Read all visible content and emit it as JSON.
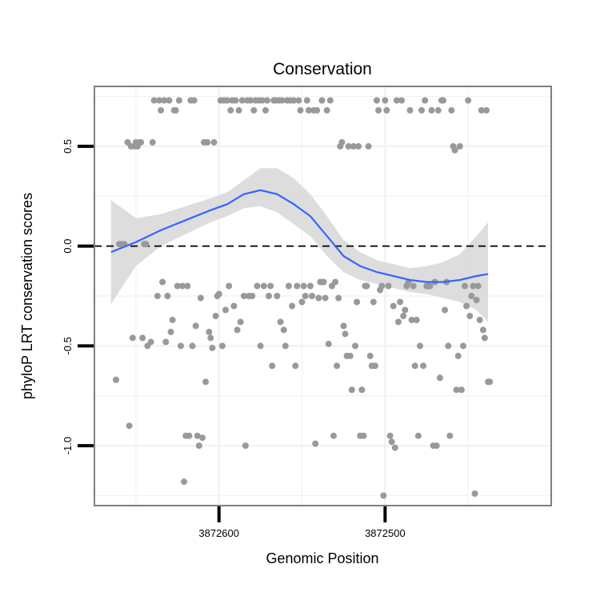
{
  "chart_data": {
    "type": "scatter",
    "title": "Conservation",
    "xlabel": "Genomic Position",
    "ylabel": "phyloP LRT conservation scores",
    "x_ticks": [
      3872600,
      3872500
    ],
    "x_tick_labels": [
      "3872600",
      "3872500"
    ],
    "y_ticks": [
      0.5,
      0.0,
      -0.5,
      -1.0
    ],
    "y_tick_labels": [
      "0.5",
      "0.0",
      "-0.5",
      "-1.0"
    ],
    "xlim": [
      3872675,
      3872400
    ],
    "x_reversed": true,
    "ylim": [
      -1.3,
      0.8
    ],
    "grid": true,
    "reference_line": {
      "y": 0.0,
      "style": "dashed"
    },
    "colors": {
      "points": "#999999",
      "smooth": "#3366ff",
      "ribbon": "#d9d9d9",
      "panel_border": "#7f7f7f",
      "grid": "#f2f2f2"
    },
    "points": [
      [
        3872662,
        -0.67
      ],
      [
        3872660,
        0.01
      ],
      [
        3872659,
        0.01
      ],
      [
        3872657,
        0.01
      ],
      [
        3872655,
        0.52
      ],
      [
        3872654,
        -0.9
      ],
      [
        3872653,
        0.5
      ],
      [
        3872652,
        -0.46
      ],
      [
        3872651,
        0.5
      ],
      [
        3872650,
        0.52
      ],
      [
        3872649,
        0.5
      ],
      [
        3872648,
        0.52
      ],
      [
        3872647,
        0.52
      ],
      [
        3872646,
        -0.46
      ],
      [
        3872645,
        0.01
      ],
      [
        3872644,
        0.01
      ],
      [
        3872643,
        -0.5
      ],
      [
        3872641,
        -0.48
      ],
      [
        3872640,
        0.52
      ],
      [
        3872639,
        0.73
      ],
      [
        3872637,
        -0.25
      ],
      [
        3872636,
        0.73
      ],
      [
        3872635,
        0.68
      ],
      [
        3872634,
        -0.18
      ],
      [
        3872633,
        0.73
      ],
      [
        3872632,
        -0.48
      ],
      [
        3872631,
        -0.25
      ],
      [
        3872630,
        0.73
      ],
      [
        3872629,
        -0.43
      ],
      [
        3872628,
        -0.37
      ],
      [
        3872627,
        0.68
      ],
      [
        3872626,
        0.68
      ],
      [
        3872625,
        -0.2
      ],
      [
        3872624,
        0.73
      ],
      [
        3872623,
        -0.5
      ],
      [
        3872622,
        -0.2
      ],
      [
        3872621,
        -1.18
      ],
      [
        3872620,
        -0.95
      ],
      [
        3872619,
        -0.2
      ],
      [
        3872618,
        -0.95
      ],
      [
        3872617,
        0.73
      ],
      [
        3872616,
        -0.5
      ],
      [
        3872615,
        0.73
      ],
      [
        3872614,
        -0.4
      ],
      [
        3872613,
        -0.95
      ],
      [
        3872612,
        -1.0
      ],
      [
        3872611,
        -0.26
      ],
      [
        3872610,
        -0.96
      ],
      [
        3872609,
        0.52
      ],
      [
        3872608,
        -0.68
      ],
      [
        3872607,
        0.52
      ],
      [
        3872606,
        -0.43
      ],
      [
        3872605,
        -0.46
      ],
      [
        3872604,
        -0.51
      ],
      [
        3872603,
        0.52
      ],
      [
        3872602,
        -0.35
      ],
      [
        3872601,
        -0.25
      ],
      [
        3872600,
        -0.24
      ],
      [
        3872599,
        0.73
      ],
      [
        3872598,
        -0.5
      ],
      [
        3872597,
        0.73
      ],
      [
        3872596,
        -0.32
      ],
      [
        3872595,
        0.73
      ],
      [
        3872594,
        -0.2
      ],
      [
        3872593,
        0.68
      ],
      [
        3872592,
        0.73
      ],
      [
        3872591,
        -0.3
      ],
      [
        3872590,
        0.73
      ],
      [
        3872589,
        -0.42
      ],
      [
        3872588,
        0.68
      ],
      [
        3872587,
        -0.38
      ],
      [
        3872586,
        0.73
      ],
      [
        3872585,
        -0.25
      ],
      [
        3872584,
        -1.0
      ],
      [
        3872583,
        0.73
      ],
      [
        3872582,
        -0.25
      ],
      [
        3872581,
        0.73
      ],
      [
        3872580,
        -0.25
      ],
      [
        3872579,
        0.68
      ],
      [
        3872578,
        0.73
      ],
      [
        3872577,
        -0.2
      ],
      [
        3872576,
        0.73
      ],
      [
        3872575,
        -0.5
      ],
      [
        3872574,
        0.73
      ],
      [
        3872573,
        -0.2
      ],
      [
        3872572,
        0.68
      ],
      [
        3872571,
        0.73
      ],
      [
        3872570,
        -0.25
      ],
      [
        3872569,
        -0.2
      ],
      [
        3872568,
        -0.6
      ],
      [
        3872567,
        0.73
      ],
      [
        3872566,
        0.73
      ],
      [
        3872565,
        -0.25
      ],
      [
        3872564,
        0.73
      ],
      [
        3872563,
        -0.38
      ],
      [
        3872562,
        0.73
      ],
      [
        3872561,
        -0.42
      ],
      [
        3872560,
        -0.5
      ],
      [
        3872559,
        0.73
      ],
      [
        3872558,
        -0.2
      ],
      [
        3872557,
        0.73
      ],
      [
        3872556,
        -0.3
      ],
      [
        3872555,
        0.73
      ],
      [
        3872554,
        -0.6
      ],
      [
        3872553,
        -0.2
      ],
      [
        3872552,
        0.73
      ],
      [
        3872551,
        0.68
      ],
      [
        3872550,
        -0.28
      ],
      [
        3872549,
        -0.2
      ],
      [
        3872548,
        -0.25
      ],
      [
        3872547,
        0.73
      ],
      [
        3872546,
        0.68
      ],
      [
        3872545,
        -0.2
      ],
      [
        3872544,
        -0.25
      ],
      [
        3872543,
        0.68
      ],
      [
        3872542,
        -0.99
      ],
      [
        3872541,
        0.68
      ],
      [
        3872540,
        -0.26
      ],
      [
        3872539,
        -0.18
      ],
      [
        3872538,
        0.73
      ],
      [
        3872537,
        -0.18
      ],
      [
        3872536,
        -0.26
      ],
      [
        3872535,
        0.68
      ],
      [
        3872534,
        -0.49
      ],
      [
        3872533,
        0.73
      ],
      [
        3872532,
        -0.2
      ],
      [
        3872531,
        -0.95
      ],
      [
        3872530,
        -0.18
      ],
      [
        3872529,
        -0.6
      ],
      [
        3872528,
        -0.26
      ],
      [
        3872527,
        0.5
      ],
      [
        3872526,
        0.52
      ],
      [
        3872525,
        -0.4
      ],
      [
        3872524,
        -0.44
      ],
      [
        3872523,
        -0.55
      ],
      [
        3872522,
        0.5
      ],
      [
        3872521,
        -0.55
      ],
      [
        3872520,
        -0.72
      ],
      [
        3872519,
        0.5
      ],
      [
        3872518,
        -0.5
      ],
      [
        3872517,
        -0.28
      ],
      [
        3872516,
        0.5
      ],
      [
        3872515,
        -0.95
      ],
      [
        3872514,
        -0.72
      ],
      [
        3872513,
        -0.95
      ],
      [
        3872512,
        -0.2
      ],
      [
        3872511,
        -0.2
      ],
      [
        3872510,
        0.5
      ],
      [
        3872509,
        -0.55
      ],
      [
        3872508,
        -0.6
      ],
      [
        3872507,
        -0.28
      ],
      [
        3872506,
        -0.6
      ],
      [
        3872505,
        0.73
      ],
      [
        3872504,
        0.68
      ],
      [
        3872503,
        -0.22
      ],
      [
        3872502,
        -0.2
      ],
      [
        3872501,
        -1.25
      ],
      [
        3872500,
        0.73
      ],
      [
        3872499,
        0.68
      ],
      [
        3872498,
        -0.2
      ],
      [
        3872497,
        -0.95
      ],
      [
        3872496,
        -0.98
      ],
      [
        3872495,
        -0.3
      ],
      [
        3872494,
        -1.01
      ],
      [
        3872493,
        0.73
      ],
      [
        3872492,
        -0.38
      ],
      [
        3872491,
        -0.28
      ],
      [
        3872490,
        0.73
      ],
      [
        3872489,
        -0.35
      ],
      [
        3872488,
        -0.32
      ],
      [
        3872487,
        -0.2
      ],
      [
        3872486,
        -0.18
      ],
      [
        3872485,
        0.68
      ],
      [
        3872484,
        -0.37
      ],
      [
        3872483,
        -0.2
      ],
      [
        3872482,
        -0.6
      ],
      [
        3872481,
        -0.37
      ],
      [
        3872480,
        -0.95
      ],
      [
        3872479,
        -0.5
      ],
      [
        3872478,
        0.68
      ],
      [
        3872477,
        -0.6
      ],
      [
        3872476,
        0.73
      ],
      [
        3872475,
        -0.2
      ],
      [
        3872474,
        -0.2
      ],
      [
        3872473,
        -0.2
      ],
      [
        3872472,
        0.68
      ],
      [
        3872471,
        -1.0
      ],
      [
        3872470,
        -0.18
      ],
      [
        3872469,
        -1.0
      ],
      [
        3872468,
        0.68
      ],
      [
        3872467,
        -0.66
      ],
      [
        3872466,
        0.73
      ],
      [
        3872465,
        0.73
      ],
      [
        3872464,
        -0.32
      ],
      [
        3872463,
        -0.18
      ],
      [
        3872462,
        -0.5
      ],
      [
        3872461,
        -0.95
      ],
      [
        3872460,
        0.68
      ],
      [
        3872459,
        0.5
      ],
      [
        3872458,
        0.48
      ],
      [
        3872457,
        -0.72
      ],
      [
        3872456,
        -0.55
      ],
      [
        3872455,
        0.5
      ],
      [
        3872454,
        -0.72
      ],
      [
        3872453,
        -0.5
      ],
      [
        3872452,
        -0.2
      ],
      [
        3872451,
        -0.3
      ],
      [
        3872450,
        0.73
      ],
      [
        3872449,
        -0.35
      ],
      [
        3872448,
        -0.25
      ],
      [
        3872447,
        -0.2
      ],
      [
        3872446,
        -1.24
      ],
      [
        3872445,
        -0.27
      ],
      [
        3872444,
        -0.2
      ],
      [
        3872443,
        -0.37
      ],
      [
        3872442,
        0.68
      ],
      [
        3872441,
        -0.42
      ],
      [
        3872440,
        -0.46
      ],
      [
        3872439,
        0.68
      ],
      [
        3872438,
        -0.68
      ],
      [
        3872437,
        -0.68
      ]
    ],
    "smooth": {
      "x": [
        3872665,
        3872650,
        3872635,
        3872620,
        3872605,
        3872595,
        3872585,
        3872575,
        3872565,
        3872555,
        3872545,
        3872535,
        3872525,
        3872515,
        3872505,
        3872495,
        3872485,
        3872475,
        3872465,
        3872455,
        3872445,
        3872438
      ],
      "y": [
        -0.03,
        0.02,
        0.08,
        0.13,
        0.18,
        0.21,
        0.26,
        0.28,
        0.26,
        0.21,
        0.15,
        0.05,
        -0.05,
        -0.1,
        -0.13,
        -0.15,
        -0.17,
        -0.18,
        -0.18,
        -0.17,
        -0.15,
        -0.14
      ],
      "lower": [
        -0.29,
        -0.1,
        0.0,
        0.06,
        0.12,
        0.15,
        0.19,
        0.2,
        0.17,
        0.11,
        0.05,
        -0.05,
        -0.13,
        -0.17,
        -0.19,
        -0.21,
        -0.23,
        -0.24,
        -0.26,
        -0.28,
        -0.32,
        -0.38
      ],
      "upper": [
        0.23,
        0.14,
        0.16,
        0.2,
        0.24,
        0.27,
        0.33,
        0.39,
        0.39,
        0.34,
        0.26,
        0.15,
        0.03,
        -0.03,
        -0.07,
        -0.09,
        -0.11,
        -0.1,
        -0.08,
        -0.04,
        0.05,
        0.12
      ]
    }
  }
}
